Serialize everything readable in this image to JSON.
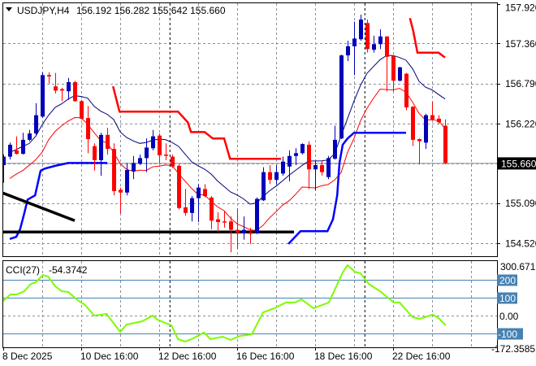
{
  "header": {
    "symbol_label": "USDJPY,H4",
    "ohlc": "156.192 156.282 155.642 155.660"
  },
  "colors": {
    "bull": "#0000b8",
    "bear": "#ff0000",
    "ema_high": "#000080",
    "ema_low": "#ff0000",
    "step_upper": "#ff0000",
    "step_lower": "#0000ff",
    "trendline": "#000000",
    "cci": "#7cfc00",
    "cci_level": "#4682b4"
  },
  "chart_data": {
    "type": "candlestick",
    "title": "USDJPY,H4",
    "ylim": [
      154.52,
      157.92
    ],
    "y_ticks": [
      "157.920",
      "157.360",
      "156.790",
      "156.220",
      "155.090",
      "154.520"
    ],
    "y_tick_values": [
      157.92,
      157.36,
      156.79,
      156.22,
      155.09,
      154.52
    ],
    "current_price": "155.660",
    "current_price_value": 155.66,
    "x_ticks": [
      {
        "label": "8 Dec 2025",
        "bar": 0
      },
      {
        "label": "10 Dec 16:00",
        "bar": 12
      },
      {
        "label": "12 Dec 16:00",
        "bar": 24
      },
      {
        "label": "16 Dec 16:00",
        "bar": 36
      },
      {
        "label": "18 Dec 16:00",
        "bar": 48
      },
      {
        "label": "22 Dec 16:00",
        "bar": 60
      }
    ],
    "candles_ohlc": [
      [
        155.63,
        155.78,
        155.38,
        155.75
      ],
      [
        155.75,
        155.95,
        155.71,
        155.92
      ],
      [
        155.84,
        156.04,
        155.78,
        155.79
      ],
      [
        155.79,
        156.09,
        155.78,
        155.99
      ],
      [
        155.99,
        156.13,
        155.97,
        156.08
      ],
      [
        156.08,
        156.51,
        156.06,
        156.34
      ],
      [
        156.32,
        156.95,
        156.3,
        156.91
      ],
      [
        156.91,
        156.95,
        156.79,
        156.89
      ],
      [
        156.75,
        156.94,
        156.65,
        156.69
      ],
      [
        156.71,
        156.73,
        156.54,
        156.69
      ],
      [
        156.68,
        156.87,
        156.56,
        156.81
      ],
      [
        156.81,
        156.83,
        156.53,
        156.54
      ],
      [
        156.54,
        156.56,
        156.28,
        156.29
      ],
      [
        156.3,
        156.47,
        155.8,
        156.0
      ],
      [
        155.9,
        155.94,
        155.55,
        155.7
      ],
      [
        155.7,
        156.09,
        155.48,
        156.06
      ],
      [
        156.06,
        156.16,
        155.78,
        155.86
      ],
      [
        155.86,
        155.94,
        155.2,
        155.26
      ],
      [
        155.28,
        155.31,
        154.94,
        155.24
      ],
      [
        155.24,
        155.66,
        155.2,
        155.56
      ],
      [
        155.54,
        155.76,
        155.43,
        155.66
      ],
      [
        155.65,
        155.78,
        155.63,
        155.73
      ],
      [
        155.73,
        156.01,
        155.53,
        155.88
      ],
      [
        155.87,
        156.13,
        155.84,
        156.04
      ],
      [
        156.05,
        156.08,
        155.66,
        155.77
      ],
      [
        155.78,
        155.94,
        155.7,
        155.77
      ],
      [
        155.75,
        155.78,
        155.59,
        155.61
      ],
      [
        155.62,
        155.64,
        155.0,
        155.02
      ],
      [
        155.03,
        155.29,
        154.91,
        154.95
      ],
      [
        154.95,
        155.19,
        154.83,
        155.16
      ],
      [
        155.16,
        155.36,
        154.82,
        155.31
      ],
      [
        155.29,
        155.36,
        155.17,
        155.19
      ],
      [
        155.17,
        155.19,
        154.72,
        154.84
      ],
      [
        154.86,
        154.96,
        154.68,
        154.82
      ],
      [
        154.83,
        154.97,
        154.74,
        154.82
      ],
      [
        154.83,
        154.9,
        154.39,
        154.71
      ],
      [
        154.71,
        155.01,
        154.44,
        154.67
      ],
      [
        154.66,
        154.9,
        154.57,
        154.71
      ],
      [
        154.67,
        154.74,
        154.51,
        154.66
      ],
      [
        154.66,
        155.17,
        154.65,
        155.15
      ],
      [
        155.13,
        155.6,
        155.12,
        155.53
      ],
      [
        155.53,
        155.63,
        155.36,
        155.42
      ],
      [
        155.42,
        155.63,
        155.36,
        155.53
      ],
      [
        155.51,
        155.75,
        155.48,
        155.68
      ],
      [
        155.61,
        155.84,
        155.4,
        155.76
      ],
      [
        155.76,
        155.87,
        155.63,
        155.8
      ],
      [
        155.8,
        155.94,
        155.78,
        155.93
      ],
      [
        155.92,
        155.97,
        155.29,
        155.57
      ],
      [
        155.57,
        155.69,
        155.27,
        155.63
      ],
      [
        155.63,
        155.7,
        155.48,
        155.53
      ],
      [
        155.46,
        155.76,
        155.43,
        155.73
      ],
      [
        155.72,
        156.19,
        155.71,
        155.99
      ],
      [
        156.01,
        157.2,
        156.0,
        157.19
      ],
      [
        157.19,
        157.4,
        157.11,
        157.32
      ],
      [
        157.32,
        157.67,
        156.91,
        157.43
      ],
      [
        157.42,
        157.77,
        157.4,
        157.7
      ],
      [
        157.65,
        157.7,
        157.23,
        157.28
      ],
      [
        157.27,
        157.47,
        157.23,
        157.35
      ],
      [
        157.35,
        157.56,
        157.28,
        157.46
      ],
      [
        157.46,
        157.46,
        156.68,
        157.17
      ],
      [
        157.18,
        157.19,
        156.68,
        156.83
      ],
      [
        156.83,
        157.03,
        156.82,
        157.02
      ],
      [
        156.93,
        156.94,
        156.41,
        156.45
      ],
      [
        156.46,
        156.47,
        155.9,
        155.99
      ],
      [
        156.0,
        156.01,
        155.64,
        155.97
      ],
      [
        155.95,
        156.36,
        155.86,
        156.34
      ],
      [
        156.34,
        156.53,
        156.27,
        156.28
      ],
      [
        156.29,
        156.34,
        156.22,
        156.24
      ],
      [
        156.19,
        156.28,
        155.64,
        155.66
      ]
    ],
    "indicators": {
      "ema_period": 10,
      "step_upper": [
        [
          [
            16.9,
            156.75
          ],
          [
            17.9,
            156.39
          ],
          [
            26.9,
            156.39
          ],
          [
            28.4,
            156.24
          ],
          [
            28.9,
            156.1
          ],
          [
            31,
            156.1
          ],
          [
            32.25,
            156.01
          ],
          [
            34,
            156.01
          ],
          [
            34.9,
            155.72
          ],
          [
            42.75,
            155.72
          ]
        ],
        [
          [
            62.6,
            157.72
          ],
          [
            63.1,
            157.54
          ],
          [
            63.75,
            157.23
          ],
          [
            67,
            157.23
          ],
          [
            68,
            157.16
          ]
        ]
      ],
      "step_lower": [
        [
          [
            1,
            154.58
          ],
          [
            2,
            154.61
          ],
          [
            2.6,
            154.72
          ],
          [
            3.25,
            154.95
          ],
          [
            3.75,
            155.14
          ],
          [
            4.9,
            155.2
          ],
          [
            5.75,
            155.55
          ],
          [
            6.4,
            155.58
          ],
          [
            8,
            155.62
          ],
          [
            10,
            155.66
          ],
          [
            16,
            155.66
          ]
        ],
        [
          [
            43.9,
            154.51
          ],
          [
            45.75,
            154.69
          ],
          [
            49.9,
            154.69
          ],
          [
            50.75,
            154.86
          ],
          [
            51.4,
            155.2
          ],
          [
            51.75,
            155.66
          ],
          [
            52.25,
            155.92
          ],
          [
            53,
            156.01
          ],
          [
            54,
            156.09
          ],
          [
            62,
            156.09
          ]
        ]
      ],
      "trendlines": [
        [
          [
            -0.5,
            155.25
          ],
          [
            11,
            154.84
          ]
        ],
        [
          [
            -0.5,
            154.68
          ],
          [
            44.75,
            154.68
          ]
        ]
      ],
      "period_separators": [
        25.6,
        55.6
      ]
    },
    "cci": {
      "label": "CCI(27)",
      "value": "-54.3742",
      "scale_max": "300.6719",
      "scale_min": "-172.3585",
      "range": [
        -172.3585,
        300.6719
      ],
      "levels": [
        {
          "label": "200",
          "value": 200
        },
        {
          "label": "100",
          "value": 100
        },
        {
          "label": "0.00",
          "value": 0
        },
        {
          "label": "-100",
          "value": -100
        }
      ],
      "points": [
        [
          0,
          82
        ],
        [
          1.1,
          118
        ],
        [
          2.1,
          118
        ],
        [
          3.25,
          136
        ],
        [
          4.25,
          177
        ],
        [
          5,
          186
        ],
        [
          6.1,
          227
        ],
        [
          6.9,
          218
        ],
        [
          8,
          164
        ],
        [
          9,
          136
        ],
        [
          10,
          132
        ],
        [
          11.6,
          82
        ],
        [
          12.6,
          59
        ],
        [
          14,
          0
        ],
        [
          15.9,
          9
        ],
        [
          18,
          -91
        ],
        [
          19,
          -50
        ],
        [
          21.4,
          -32
        ],
        [
          23,
          0
        ],
        [
          23.75,
          -23
        ],
        [
          25.9,
          -55
        ],
        [
          26.9,
          -132
        ],
        [
          28,
          -145
        ],
        [
          29,
          -132
        ],
        [
          30.9,
          -95
        ],
        [
          31.9,
          -132
        ],
        [
          33.75,
          -118
        ],
        [
          35,
          -136
        ],
        [
          36.4,
          -114
        ],
        [
          38.25,
          -105
        ],
        [
          40,
          18
        ],
        [
          41.75,
          41
        ],
        [
          43.5,
          73
        ],
        [
          44.9,
          73
        ],
        [
          45.9,
          91
        ],
        [
          47.75,
          41
        ],
        [
          50.1,
          73
        ],
        [
          51.1,
          150
        ],
        [
          52.25,
          241
        ],
        [
          53,
          282
        ],
        [
          54.1,
          245
        ],
        [
          55,
          236
        ],
        [
          56.25,
          177
        ],
        [
          58,
          136
        ],
        [
          60.1,
          73
        ],
        [
          61,
          73
        ],
        [
          63,
          -9
        ],
        [
          64.1,
          -18
        ],
        [
          66.1,
          5
        ],
        [
          67,
          -14
        ],
        [
          68.1,
          -54.37
        ]
      ]
    }
  }
}
